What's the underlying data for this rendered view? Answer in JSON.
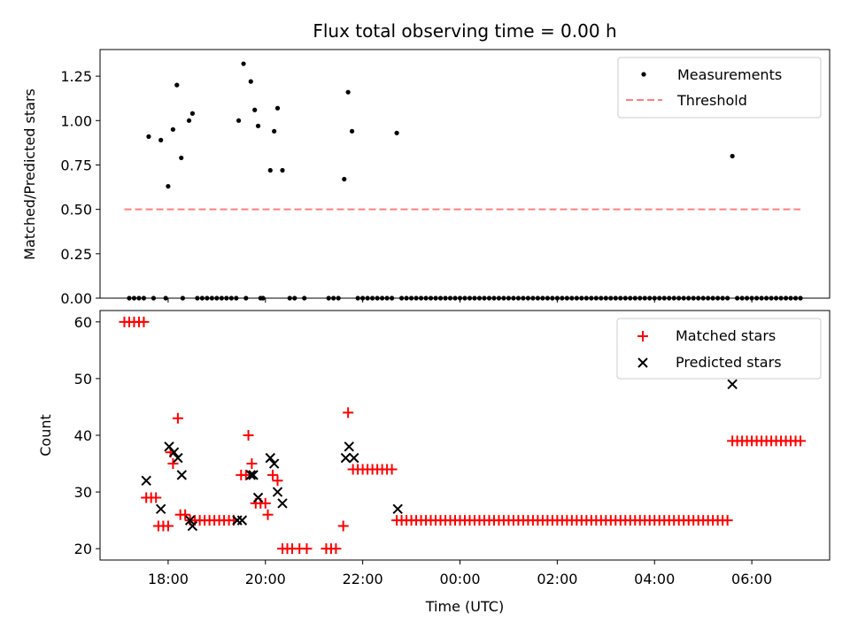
{
  "chart_data": [
    {
      "type": "scatter",
      "title": "Flux total observing time = 0.00 h",
      "xlabel": "",
      "ylabel": "Matched/Predicted stars",
      "ylim": [
        0,
        1.4
      ],
      "yticks": [
        "0.00",
        "0.25",
        "0.50",
        "0.75",
        "1.00",
        "1.25"
      ],
      "yticks_values": [
        0,
        0.25,
        0.5,
        0.75,
        1.0,
        1.25
      ],
      "legend_position": "top-right",
      "legend": [
        {
          "label": "Measurements"
        },
        {
          "label": "Threshold"
        }
      ],
      "threshold": {
        "x_start": 17.1,
        "x_end": 31.0,
        "y": 0.5,
        "color": "#ff7f7f"
      },
      "measurements": {
        "color": "#000000",
        "points": [
          [
            17.6,
            0.91
          ],
          [
            17.85,
            0.89
          ],
          [
            18.0,
            0.63
          ],
          [
            18.1,
            0.95
          ],
          [
            18.18,
            1.2
          ],
          [
            18.27,
            0.79
          ],
          [
            18.43,
            1.0
          ],
          [
            18.5,
            1.04
          ],
          [
            19.45,
            1.0
          ],
          [
            19.55,
            1.32
          ],
          [
            19.7,
            1.22
          ],
          [
            19.78,
            1.06
          ],
          [
            19.85,
            0.97
          ],
          [
            20.1,
            0.72
          ],
          [
            20.18,
            0.94
          ],
          [
            20.25,
            1.07
          ],
          [
            20.35,
            0.72
          ],
          [
            21.62,
            0.67
          ],
          [
            21.7,
            1.16
          ],
          [
            21.78,
            0.94
          ],
          [
            22.7,
            0.93
          ],
          [
            29.6,
            0.8
          ]
        ],
        "zero_x": [
          17.2,
          17.3,
          17.4,
          17.5,
          17.7,
          17.95,
          18.3,
          18.6,
          18.7,
          18.8,
          18.9,
          19.0,
          19.1,
          19.2,
          19.3,
          19.4,
          19.6,
          19.9,
          19.95,
          20.5,
          20.6,
          20.8,
          21.3,
          21.4,
          21.5,
          21.9,
          22.0,
          22.1,
          22.2,
          22.3,
          22.4,
          22.5,
          22.6
        ],
        "zero_dense_range": [
          22.8,
          31.0,
          0.1
        ],
        "zero_skip": [
          29.6
        ]
      }
    },
    {
      "type": "scatter",
      "title": "",
      "xlabel": "Time (UTC)",
      "ylabel": "Count",
      "ylim": [
        18,
        62
      ],
      "xlim": [
        16.6,
        31.6
      ],
      "yticks": [
        "20",
        "30",
        "40",
        "50",
        "60"
      ],
      "yticks_values": [
        20,
        30,
        40,
        50,
        60
      ],
      "xticks": [
        "18:00",
        "20:00",
        "22:00",
        "00:00",
        "02:00",
        "04:00",
        "06:00"
      ],
      "xticks_values": [
        18,
        20,
        22,
        24,
        26,
        28,
        30
      ],
      "legend_position": "top-right",
      "legend": [
        {
          "label": "Matched stars"
        },
        {
          "label": "Predicted stars"
        }
      ],
      "matched": {
        "color": "#ff0000",
        "points": [
          [
            17.1,
            60
          ],
          [
            17.2,
            60
          ],
          [
            17.3,
            60
          ],
          [
            17.4,
            60
          ],
          [
            17.5,
            60
          ],
          [
            17.55,
            29
          ],
          [
            17.65,
            29
          ],
          [
            17.75,
            29
          ],
          [
            17.8,
            24
          ],
          [
            17.9,
            24
          ],
          [
            18.0,
            24
          ],
          [
            18.05,
            37
          ],
          [
            18.1,
            35
          ],
          [
            18.2,
            43
          ],
          [
            18.25,
            26
          ],
          [
            18.35,
            26
          ],
          [
            18.45,
            25
          ],
          [
            18.55,
            25
          ],
          [
            18.65,
            25
          ],
          [
            18.75,
            25
          ],
          [
            18.85,
            25
          ],
          [
            18.95,
            25
          ],
          [
            19.05,
            25
          ],
          [
            19.15,
            25
          ],
          [
            19.25,
            25
          ],
          [
            19.35,
            25
          ],
          [
            19.5,
            33
          ],
          [
            19.6,
            33
          ],
          [
            19.65,
            40
          ],
          [
            19.72,
            35
          ],
          [
            19.8,
            28
          ],
          [
            19.9,
            28
          ],
          [
            20.0,
            28
          ],
          [
            20.05,
            26
          ],
          [
            20.15,
            33
          ],
          [
            20.25,
            32
          ],
          [
            20.35,
            20
          ],
          [
            20.45,
            20
          ],
          [
            20.55,
            20
          ],
          [
            20.7,
            20
          ],
          [
            20.85,
            20
          ],
          [
            21.25,
            20
          ],
          [
            21.35,
            20
          ],
          [
            21.45,
            20
          ],
          [
            21.6,
            24
          ],
          [
            21.7,
            44
          ],
          [
            21.8,
            34
          ],
          [
            21.9,
            34
          ],
          [
            22.0,
            34
          ],
          [
            22.1,
            34
          ],
          [
            22.2,
            34
          ],
          [
            22.3,
            34
          ],
          [
            22.4,
            34
          ],
          [
            22.5,
            34
          ],
          [
            22.6,
            34
          ]
        ],
        "dense_series": [
          {
            "x_start": 22.7,
            "x_end": 29.5,
            "step": 0.1,
            "y": 25
          },
          {
            "x_start": 29.6,
            "x_end": 31.0,
            "step": 0.1,
            "y": 39
          }
        ]
      },
      "predicted": {
        "color": "#000000",
        "points": [
          [
            17.55,
            32
          ],
          [
            17.85,
            27
          ],
          [
            18.02,
            38
          ],
          [
            18.12,
            37
          ],
          [
            18.2,
            36
          ],
          [
            18.28,
            33
          ],
          [
            18.45,
            25
          ],
          [
            18.5,
            24
          ],
          [
            19.42,
            25
          ],
          [
            19.52,
            25
          ],
          [
            19.7,
            33
          ],
          [
            19.75,
            33
          ],
          [
            19.85,
            29
          ],
          [
            20.1,
            36
          ],
          [
            20.18,
            35
          ],
          [
            20.25,
            30
          ],
          [
            20.35,
            28
          ],
          [
            21.65,
            36
          ],
          [
            21.72,
            38
          ],
          [
            21.82,
            36
          ],
          [
            22.72,
            27
          ],
          [
            29.6,
            49
          ]
        ]
      }
    }
  ]
}
